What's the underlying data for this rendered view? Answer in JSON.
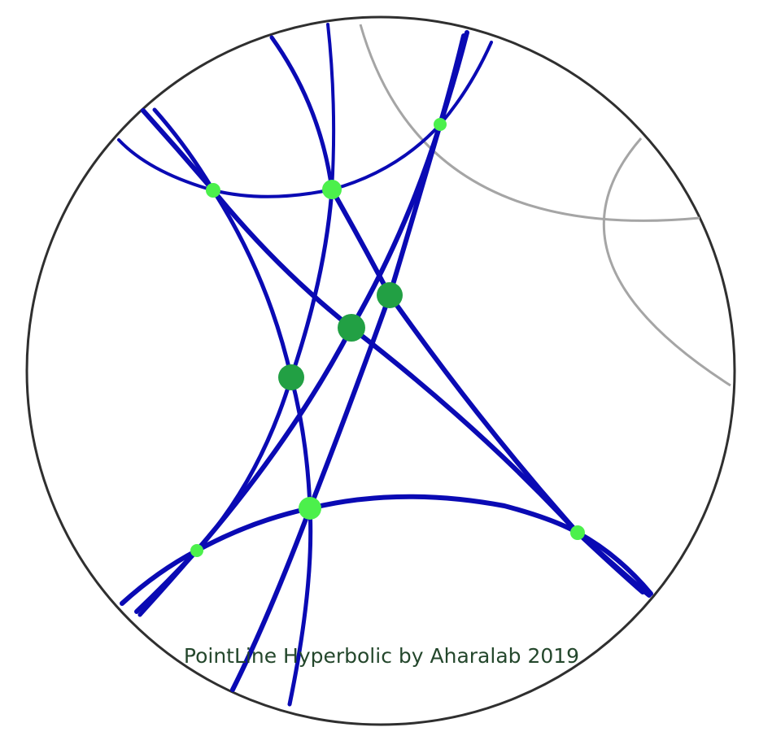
{
  "diagram": {
    "caption": "PointLine Hyperbolic by Aharalab 2019",
    "colors": {
      "boundary": "#2f2f2f",
      "auxiliary_arc": "#a5a5a5",
      "geodesic": "#0a0ab4",
      "ideal_vertex": "#4cf04c",
      "intersection_point": "#22a044",
      "caption": "#24472c"
    },
    "model": "Poincaré disk",
    "auxiliary_arc_count": 2,
    "geodesic_count": 9,
    "vertex_count": 6,
    "intersection_point_count": 3
  }
}
